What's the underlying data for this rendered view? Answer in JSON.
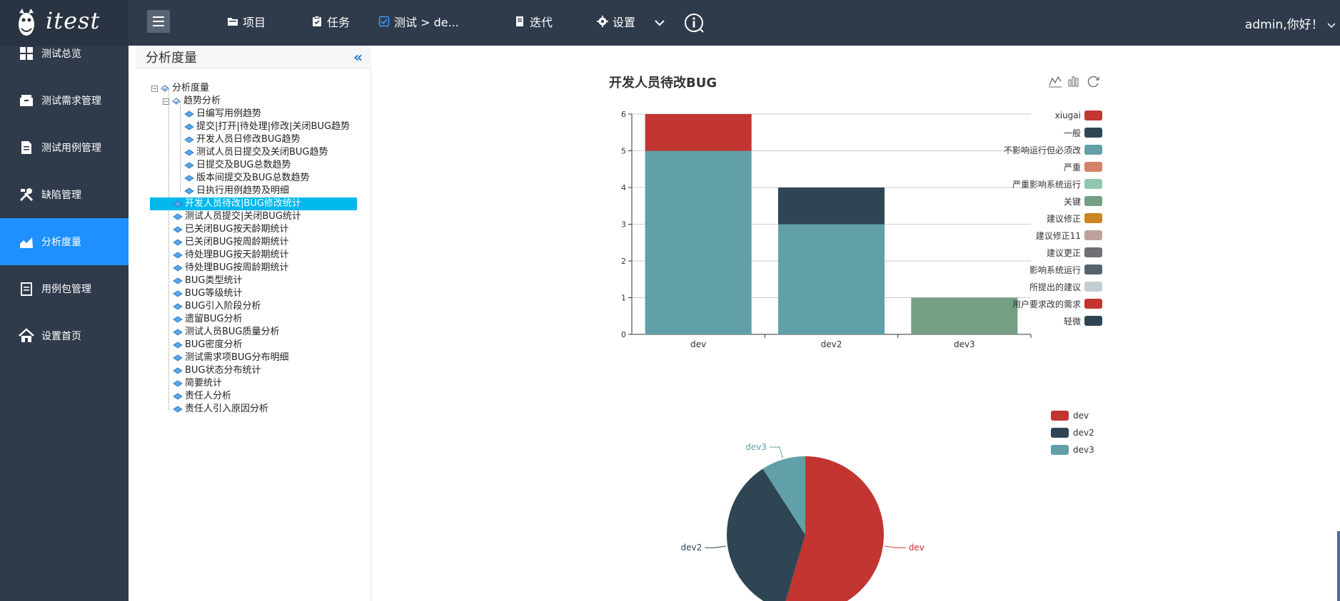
{
  "app": {
    "logo_text": "itest",
    "user_greeting": "admin,你好！"
  },
  "topnav": {
    "items": [
      {
        "label": "项目",
        "icon": "folder-icon"
      },
      {
        "label": "任务",
        "icon": "clipboard-icon"
      },
      {
        "label": "测试 > de...",
        "icon": "checkbox-icon"
      },
      {
        "label": "迭代",
        "icon": "book-icon"
      },
      {
        "label": "设置",
        "icon": "gear-icon"
      }
    ]
  },
  "sidebar": {
    "items": [
      {
        "label": "测试总览",
        "icon": "dashboard-icon"
      },
      {
        "label": "测试需求管理",
        "icon": "box-icon"
      },
      {
        "label": "测试用例管理",
        "icon": "document-icon"
      },
      {
        "label": "缺陷管理",
        "icon": "tools-icon"
      },
      {
        "label": "分析度量",
        "icon": "area-chart-icon",
        "active": true
      },
      {
        "label": "用例包管理",
        "icon": "package-icon"
      },
      {
        "label": "设置首页",
        "icon": "home-icon"
      }
    ]
  },
  "tree": {
    "title": "分析度量",
    "root": "分析度量",
    "group": "趋势分析",
    "trend_items": [
      "日编写用例趋势",
      "提交|打开|待处理|修改|关闭BUG趋势",
      "开发人员日修改BUG趋势",
      "测试人员日提交及关闭BUG趋势",
      "日提交及BUG总数趋势",
      "版本间提交及BUG总数趋势",
      "日执行用例趋势及明细"
    ],
    "items": [
      "开发人员待改|BUG修改统计",
      "测试人员提交|关闭BUG统计",
      "已关闭BUG按天龄期统计",
      "已关闭BUG按周龄期统计",
      "待处理BUG按天龄期统计",
      "待处理BUG按周龄期统计",
      "BUG类型统计",
      "BUG等级统计",
      "BUG引入阶段分析",
      "遗留BUG分析",
      "测试人员BUG质量分析",
      "BUG密度分析",
      "测试需求项BUG分布明细",
      "BUG状态分布统计",
      "简要统计",
      "责任人分析",
      "责任人引入原因分析"
    ]
  },
  "colors": {
    "red": "#c23531",
    "navy": "#2f4554",
    "teal": "#61a0a8",
    "salmon": "#d48265",
    "mint": "#91c7ae",
    "green": "#749f83",
    "orange": "#ca8622",
    "tan": "#bda29a",
    "gray": "#6e7074",
    "slate": "#546570",
    "lightblue": "#c4ccd3"
  },
  "chart_data": [
    {
      "type": "bar",
      "title": "开发人员待改BUG",
      "stacked": true,
      "categories": [
        "dev",
        "dev2",
        "dev3"
      ],
      "ylim": [
        0,
        6
      ],
      "yticks": [
        "0",
        "1",
        "2",
        "3",
        "4",
        "5",
        "6"
      ],
      "grid": true,
      "legend_position": "right",
      "legend": [
        {
          "name": "xiugai",
          "color": "#c23531"
        },
        {
          "name": "一般",
          "color": "#2f4554"
        },
        {
          "name": "不影响运行但必须改",
          "color": "#61a0a8"
        },
        {
          "name": "严重",
          "color": "#d48265"
        },
        {
          "name": "严重影响系统运行",
          "color": "#91c7ae"
        },
        {
          "name": "关键",
          "color": "#749f83"
        },
        {
          "name": "建议修正",
          "color": "#ca8622"
        },
        {
          "name": "建议修正11",
          "color": "#bda29a"
        },
        {
          "name": "建议更正",
          "color": "#6e7074"
        },
        {
          "name": "影响系统运行",
          "color": "#546570"
        },
        {
          "name": "所提出的建议",
          "color": "#c4ccd3"
        },
        {
          "name": "用户要求改的需求",
          "color": "#c23531"
        },
        {
          "name": "轻微",
          "color": "#2f4554"
        }
      ],
      "series": [
        {
          "name": "不影响运行但必须改",
          "color": "#61a0a8",
          "values": [
            5,
            3,
            0
          ]
        },
        {
          "name": "关键",
          "color": "#749f83",
          "values": [
            0,
            0,
            1
          ]
        },
        {
          "name": "一般",
          "color": "#2f4554",
          "values": [
            0,
            1,
            0
          ]
        },
        {
          "name": "xiugai",
          "color": "#c23531",
          "values": [
            1,
            0,
            0
          ]
        }
      ]
    },
    {
      "type": "pie",
      "legend_position": "top-right",
      "slices": [
        {
          "name": "dev",
          "value": 6,
          "color": "#c23531"
        },
        {
          "name": "dev2",
          "value": 4,
          "color": "#2f4554"
        },
        {
          "name": "dev3",
          "value": 1,
          "color": "#61a0a8"
        }
      ]
    }
  ]
}
